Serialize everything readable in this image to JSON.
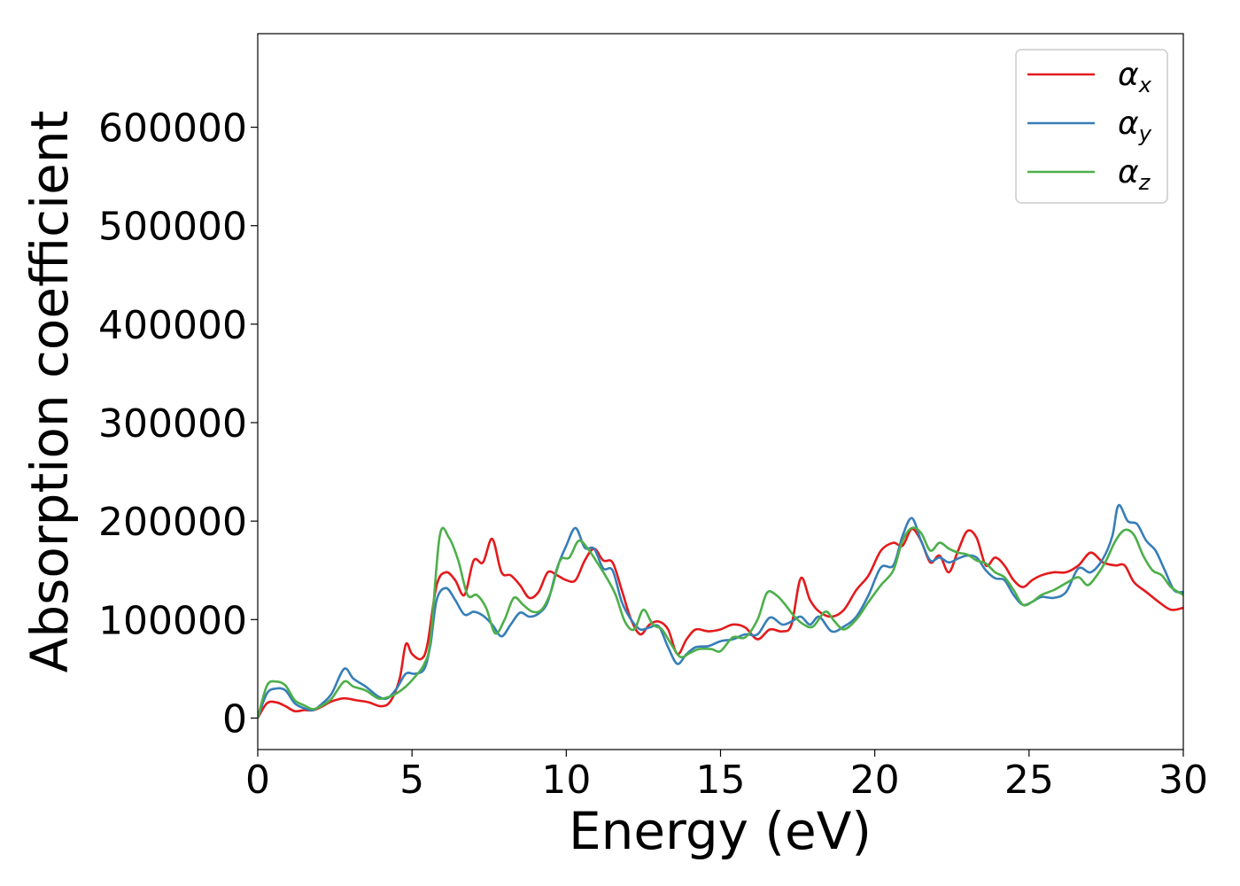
{
  "chart_data": {
    "type": "line",
    "title": "",
    "xlabel": "Energy (eV)",
    "ylabel": "Absorption coefficient",
    "xlim": [
      0,
      30
    ],
    "ylim": [
      -32000,
      695000
    ],
    "xticks": [
      0,
      5,
      10,
      15,
      20,
      25,
      30
    ],
    "xtick_labels": [
      "0",
      "5",
      "10",
      "15",
      "20",
      "25",
      "30"
    ],
    "yticks": [
      0,
      100000,
      200000,
      300000,
      400000,
      500000,
      600000
    ],
    "ytick_labels": [
      "0",
      "100000",
      "200000",
      "300000",
      "400000",
      "500000",
      "600000"
    ],
    "grid": false,
    "legend_position": "top-right",
    "series": [
      {
        "name": "αx",
        "symbol": "α",
        "sub": "x",
        "color": "#e41a1c",
        "points": [
          [
            0,
            0
          ],
          [
            0.3,
            15000
          ],
          [
            0.6,
            16000
          ],
          [
            0.9,
            12000
          ],
          [
            1.2,
            7000
          ],
          [
            1.5,
            8000
          ],
          [
            1.8,
            8000
          ],
          [
            2.1,
            12000
          ],
          [
            2.4,
            17000
          ],
          [
            2.8,
            20000
          ],
          [
            3.2,
            18000
          ],
          [
            3.6,
            16000
          ],
          [
            4.0,
            12000
          ],
          [
            4.3,
            17000
          ],
          [
            4.6,
            40000
          ],
          [
            4.8,
            75000
          ],
          [
            5.0,
            65000
          ],
          [
            5.3,
            60000
          ],
          [
            5.5,
            75000
          ],
          [
            5.8,
            135000
          ],
          [
            6.1,
            148000
          ],
          [
            6.4,
            140000
          ],
          [
            6.7,
            125000
          ],
          [
            7.0,
            160000
          ],
          [
            7.3,
            158000
          ],
          [
            7.6,
            182000
          ],
          [
            7.9,
            148000
          ],
          [
            8.2,
            145000
          ],
          [
            8.5,
            135000
          ],
          [
            8.8,
            122000
          ],
          [
            9.1,
            128000
          ],
          [
            9.4,
            148000
          ],
          [
            9.7,
            145000
          ],
          [
            10.0,
            140000
          ],
          [
            10.3,
            140000
          ],
          [
            10.6,
            160000
          ],
          [
            10.9,
            172000
          ],
          [
            11.2,
            160000
          ],
          [
            11.5,
            158000
          ],
          [
            11.8,
            130000
          ],
          [
            12.1,
            100000
          ],
          [
            12.4,
            85000
          ],
          [
            12.7,
            95000
          ],
          [
            13.0,
            98000
          ],
          [
            13.3,
            90000
          ],
          [
            13.6,
            65000
          ],
          [
            13.9,
            80000
          ],
          [
            14.2,
            90000
          ],
          [
            14.6,
            88000
          ],
          [
            15.0,
            90000
          ],
          [
            15.4,
            95000
          ],
          [
            15.8,
            92000
          ],
          [
            16.2,
            80000
          ],
          [
            16.6,
            90000
          ],
          [
            17.0,
            88000
          ],
          [
            17.3,
            95000
          ],
          [
            17.6,
            142000
          ],
          [
            17.9,
            120000
          ],
          [
            18.2,
            108000
          ],
          [
            18.6,
            103000
          ],
          [
            19.0,
            110000
          ],
          [
            19.4,
            130000
          ],
          [
            19.8,
            145000
          ],
          [
            20.2,
            170000
          ],
          [
            20.6,
            178000
          ],
          [
            20.9,
            175000
          ],
          [
            21.2,
            192000
          ],
          [
            21.5,
            180000
          ],
          [
            21.8,
            158000
          ],
          [
            22.1,
            165000
          ],
          [
            22.4,
            148000
          ],
          [
            22.7,
            170000
          ],
          [
            23.0,
            190000
          ],
          [
            23.3,
            183000
          ],
          [
            23.6,
            155000
          ],
          [
            23.9,
            163000
          ],
          [
            24.2,
            155000
          ],
          [
            24.5,
            140000
          ],
          [
            24.8,
            133000
          ],
          [
            25.1,
            140000
          ],
          [
            25.4,
            145000
          ],
          [
            25.8,
            148000
          ],
          [
            26.2,
            148000
          ],
          [
            26.6,
            155000
          ],
          [
            27.0,
            168000
          ],
          [
            27.4,
            158000
          ],
          [
            27.8,
            155000
          ],
          [
            28.1,
            155000
          ],
          [
            28.4,
            138000
          ],
          [
            28.8,
            128000
          ],
          [
            29.2,
            118000
          ],
          [
            29.6,
            110000
          ],
          [
            30.0,
            112000
          ]
        ]
      },
      {
        "name": "αy",
        "symbol": "α",
        "sub": "y",
        "color": "#377eb8",
        "points": [
          [
            0,
            0
          ],
          [
            0.3,
            25000
          ],
          [
            0.6,
            30000
          ],
          [
            0.9,
            28000
          ],
          [
            1.2,
            15000
          ],
          [
            1.5,
            10000
          ],
          [
            1.8,
            8000
          ],
          [
            2.1,
            15000
          ],
          [
            2.4,
            25000
          ],
          [
            2.8,
            50000
          ],
          [
            3.1,
            40000
          ],
          [
            3.5,
            32000
          ],
          [
            3.9,
            22000
          ],
          [
            4.2,
            20000
          ],
          [
            4.5,
            30000
          ],
          [
            4.8,
            45000
          ],
          [
            5.1,
            45000
          ],
          [
            5.4,
            50000
          ],
          [
            5.6,
            75000
          ],
          [
            5.8,
            120000
          ],
          [
            6.1,
            132000
          ],
          [
            6.4,
            120000
          ],
          [
            6.7,
            105000
          ],
          [
            7.0,
            108000
          ],
          [
            7.3,
            104000
          ],
          [
            7.6,
            95000
          ],
          [
            7.9,
            83000
          ],
          [
            8.2,
            95000
          ],
          [
            8.5,
            107000
          ],
          [
            8.8,
            103000
          ],
          [
            9.1,
            106000
          ],
          [
            9.4,
            118000
          ],
          [
            9.7,
            152000
          ],
          [
            10.0,
            175000
          ],
          [
            10.3,
            193000
          ],
          [
            10.6,
            173000
          ],
          [
            10.9,
            172000
          ],
          [
            11.2,
            152000
          ],
          [
            11.5,
            150000
          ],
          [
            11.8,
            118000
          ],
          [
            12.1,
            100000
          ],
          [
            12.4,
            90000
          ],
          [
            12.7,
            92000
          ],
          [
            13.0,
            93000
          ],
          [
            13.3,
            72000
          ],
          [
            13.6,
            55000
          ],
          [
            13.9,
            65000
          ],
          [
            14.2,
            72000
          ],
          [
            14.6,
            73000
          ],
          [
            15.0,
            78000
          ],
          [
            15.4,
            80000
          ],
          [
            15.8,
            85000
          ],
          [
            16.2,
            85000
          ],
          [
            16.6,
            102000
          ],
          [
            17.0,
            95000
          ],
          [
            17.3,
            98000
          ],
          [
            17.6,
            103000
          ],
          [
            17.9,
            95000
          ],
          [
            18.2,
            103000
          ],
          [
            18.6,
            88000
          ],
          [
            19.0,
            93000
          ],
          [
            19.4,
            103000
          ],
          [
            19.8,
            125000
          ],
          [
            20.2,
            153000
          ],
          [
            20.6,
            155000
          ],
          [
            20.9,
            185000
          ],
          [
            21.2,
            203000
          ],
          [
            21.5,
            180000
          ],
          [
            21.8,
            160000
          ],
          [
            22.1,
            163000
          ],
          [
            22.4,
            158000
          ],
          [
            22.7,
            162000
          ],
          [
            23.0,
            165000
          ],
          [
            23.3,
            163000
          ],
          [
            23.6,
            150000
          ],
          [
            23.9,
            142000
          ],
          [
            24.2,
            140000
          ],
          [
            24.5,
            125000
          ],
          [
            24.8,
            115000
          ],
          [
            25.1,
            118000
          ],
          [
            25.4,
            123000
          ],
          [
            25.8,
            122000
          ],
          [
            26.2,
            128000
          ],
          [
            26.6,
            152000
          ],
          [
            27.0,
            148000
          ],
          [
            27.4,
            162000
          ],
          [
            27.7,
            185000
          ],
          [
            27.9,
            216000
          ],
          [
            28.2,
            200000
          ],
          [
            28.5,
            197000
          ],
          [
            28.8,
            180000
          ],
          [
            29.1,
            170000
          ],
          [
            29.4,
            150000
          ],
          [
            29.7,
            130000
          ],
          [
            30.0,
            128000
          ]
        ]
      },
      {
        "name": "αz",
        "symbol": "α",
        "sub": "z",
        "color": "#4daf4a",
        "points": [
          [
            0,
            0
          ],
          [
            0.3,
            33000
          ],
          [
            0.6,
            37000
          ],
          [
            0.9,
            33000
          ],
          [
            1.2,
            18000
          ],
          [
            1.5,
            13000
          ],
          [
            1.8,
            9000
          ],
          [
            2.1,
            13000
          ],
          [
            2.4,
            20000
          ],
          [
            2.8,
            37000
          ],
          [
            3.1,
            32000
          ],
          [
            3.5,
            28000
          ],
          [
            3.9,
            20000
          ],
          [
            4.2,
            21000
          ],
          [
            4.5,
            25000
          ],
          [
            4.8,
            32000
          ],
          [
            5.1,
            42000
          ],
          [
            5.4,
            55000
          ],
          [
            5.6,
            80000
          ],
          [
            5.9,
            185000
          ],
          [
            6.2,
            183000
          ],
          [
            6.5,
            160000
          ],
          [
            6.8,
            125000
          ],
          [
            7.1,
            125000
          ],
          [
            7.4,
            112000
          ],
          [
            7.7,
            86000
          ],
          [
            8.0,
            100000
          ],
          [
            8.3,
            122000
          ],
          [
            8.6,
            115000
          ],
          [
            8.9,
            108000
          ],
          [
            9.2,
            110000
          ],
          [
            9.5,
            128000
          ],
          [
            9.8,
            160000
          ],
          [
            10.1,
            163000
          ],
          [
            10.4,
            180000
          ],
          [
            10.7,
            172000
          ],
          [
            11.0,
            158000
          ],
          [
            11.3,
            143000
          ],
          [
            11.6,
            125000
          ],
          [
            11.9,
            98000
          ],
          [
            12.2,
            90000
          ],
          [
            12.5,
            110000
          ],
          [
            12.8,
            95000
          ],
          [
            13.1,
            90000
          ],
          [
            13.4,
            75000
          ],
          [
            13.7,
            62000
          ],
          [
            14.0,
            66000
          ],
          [
            14.3,
            70000
          ],
          [
            14.7,
            70000
          ],
          [
            15.0,
            68000
          ],
          [
            15.4,
            82000
          ],
          [
            15.8,
            82000
          ],
          [
            16.2,
            100000
          ],
          [
            16.5,
            127000
          ],
          [
            16.8,
            125000
          ],
          [
            17.1,
            115000
          ],
          [
            17.4,
            103000
          ],
          [
            17.7,
            95000
          ],
          [
            18.0,
            93000
          ],
          [
            18.4,
            108000
          ],
          [
            18.7,
            98000
          ],
          [
            19.0,
            90000
          ],
          [
            19.4,
            100000
          ],
          [
            19.8,
            118000
          ],
          [
            20.2,
            135000
          ],
          [
            20.6,
            150000
          ],
          [
            20.9,
            180000
          ],
          [
            21.2,
            193000
          ],
          [
            21.5,
            188000
          ],
          [
            21.8,
            170000
          ],
          [
            22.1,
            178000
          ],
          [
            22.4,
            172000
          ],
          [
            22.7,
            168000
          ],
          [
            23.0,
            166000
          ],
          [
            23.3,
            160000
          ],
          [
            23.6,
            157000
          ],
          [
            23.9,
            148000
          ],
          [
            24.2,
            143000
          ],
          [
            24.5,
            130000
          ],
          [
            24.8,
            115000
          ],
          [
            25.1,
            118000
          ],
          [
            25.4,
            125000
          ],
          [
            25.8,
            130000
          ],
          [
            26.2,
            137000
          ],
          [
            26.6,
            143000
          ],
          [
            26.9,
            135000
          ],
          [
            27.2,
            145000
          ],
          [
            27.5,
            160000
          ],
          [
            27.8,
            180000
          ],
          [
            28.1,
            191000
          ],
          [
            28.4,
            186000
          ],
          [
            28.7,
            165000
          ],
          [
            29.0,
            150000
          ],
          [
            29.3,
            145000
          ],
          [
            29.6,
            133000
          ],
          [
            30.0,
            125000
          ]
        ]
      }
    ]
  }
}
